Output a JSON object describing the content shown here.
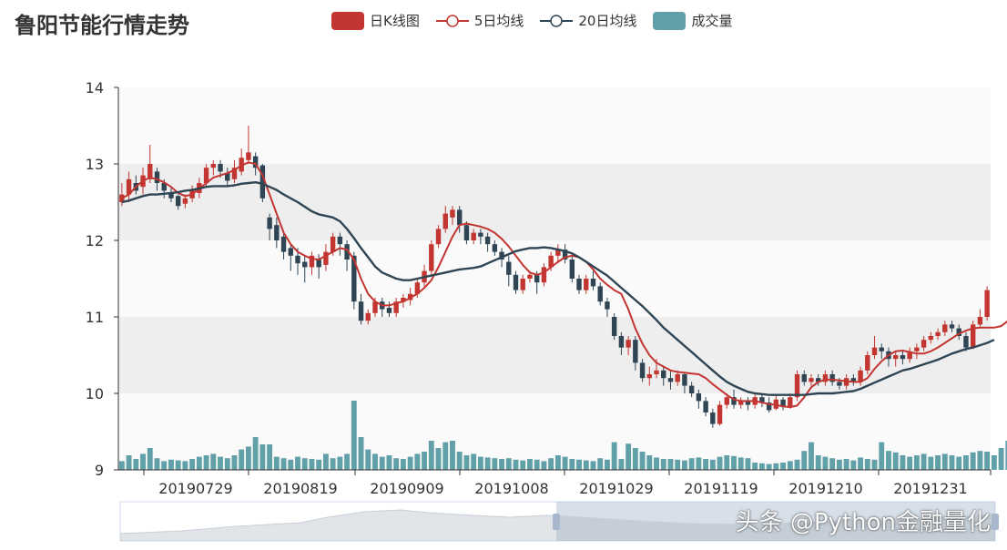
{
  "title": "鲁阳节能行情走势",
  "legend": [
    {
      "name": "日K线图",
      "kind": "candle",
      "color": "#c23531"
    },
    {
      "name": "5日均线",
      "kind": "line",
      "color": "#c23531"
    },
    {
      "name": "20日均线",
      "kind": "line",
      "color": "#2f4554"
    },
    {
      "name": "成交量",
      "kind": "bar",
      "color": "#61a0a8"
    }
  ],
  "watermark": "头条 @Python金融量化",
  "chart_data": {
    "type": "candlestick",
    "title": "鲁阳节能行情走势",
    "ylim": [
      9,
      14
    ],
    "yticks": [
      9,
      10,
      11,
      12,
      13,
      14
    ],
    "xticks": [
      "20190729",
      "20190819",
      "20190909",
      "20191008",
      "20191029",
      "20191119",
      "20191210",
      "20191231"
    ],
    "colors": {
      "up": "#c23531",
      "down": "#2f4554",
      "ma5": "#c23531",
      "ma20": "#2f4554",
      "volume": "#61a0a8"
    },
    "series": [
      {
        "name": "5日均线",
        "values": [
          12.55,
          12.6,
          12.7,
          12.78,
          12.82,
          12.8,
          12.76,
          12.7,
          12.62,
          12.58,
          12.6,
          12.68,
          12.75,
          12.82,
          12.85,
          12.88,
          12.92,
          12.98,
          13.02,
          13.0,
          12.85,
          12.6,
          12.35,
          12.1,
          11.95,
          11.85,
          11.8,
          11.76,
          11.75,
          11.8,
          11.85,
          11.9,
          11.88,
          11.75,
          11.5,
          11.3,
          11.2,
          11.15,
          11.15,
          11.18,
          11.2,
          11.25,
          11.3,
          11.38,
          11.48,
          11.65,
          11.85,
          12.05,
          12.2,
          12.22,
          12.2,
          12.18,
          12.15,
          12.1,
          12.02,
          11.92,
          11.8,
          11.68,
          11.58,
          11.55,
          11.58,
          11.65,
          11.72,
          11.78,
          11.8,
          11.78,
          11.72,
          11.62,
          11.5,
          11.42,
          11.35,
          11.3,
          11.1,
          10.85,
          10.65,
          10.5,
          10.4,
          10.35,
          10.3,
          10.28,
          10.27,
          10.26,
          10.25,
          10.2,
          10.12,
          10.05,
          9.98,
          9.92,
          9.9,
          9.9,
          9.9,
          9.88,
          9.86,
          9.85,
          9.83,
          9.82,
          9.84,
          9.95,
          10.08,
          10.15,
          10.18,
          10.18,
          10.17,
          10.16,
          10.15,
          10.15,
          10.2,
          10.32,
          10.42,
          10.5,
          10.55,
          10.56,
          10.54,
          10.52,
          10.52,
          10.55,
          10.6,
          10.66,
          10.72,
          10.78,
          10.82,
          10.85,
          10.86,
          10.86,
          10.86,
          10.88,
          10.95
        ]
      },
      {
        "name": "20日均线",
        "values": [
          12.5,
          12.52,
          12.55,
          12.58,
          12.6,
          12.6,
          12.61,
          12.62,
          12.63,
          12.65,
          12.66,
          12.68,
          12.7,
          12.71,
          12.71,
          12.71,
          12.72,
          12.74,
          12.75,
          12.76,
          12.74,
          12.7,
          12.66,
          12.6,
          12.55,
          12.5,
          12.44,
          12.38,
          12.34,
          12.32,
          12.3,
          12.25,
          12.15,
          12.03,
          11.9,
          11.78,
          11.66,
          11.58,
          11.54,
          11.5,
          11.48,
          11.48,
          11.5,
          11.52,
          11.54,
          11.56,
          11.58,
          11.6,
          11.62,
          11.63,
          11.64,
          11.66,
          11.7,
          11.74,
          11.78,
          11.82,
          11.86,
          11.88,
          11.9,
          11.9,
          11.91,
          11.9,
          11.88,
          11.86,
          11.83,
          11.78,
          11.72,
          11.66,
          11.6,
          11.54,
          11.46,
          11.38,
          11.3,
          11.22,
          11.14,
          11.05,
          10.96,
          10.86,
          10.78,
          10.7,
          10.62,
          10.54,
          10.46,
          10.38,
          10.3,
          10.22,
          10.15,
          10.1,
          10.06,
          10.02,
          10.0,
          9.99,
          9.98,
          9.98,
          9.98,
          9.98,
          9.98,
          9.98,
          9.99,
          10.0,
          10.0,
          10.0,
          10.01,
          10.02,
          10.03,
          10.06,
          10.1,
          10.14,
          10.18,
          10.22,
          10.26,
          10.3,
          10.32,
          10.35,
          10.38,
          10.41,
          10.44,
          10.48,
          10.52,
          10.55,
          10.58,
          10.6,
          10.63,
          10.66,
          10.7
        ]
      }
    ],
    "candles": [
      [
        12.5,
        12.6,
        12.75,
        12.45
      ],
      [
        12.6,
        12.8,
        12.9,
        12.5
      ],
      [
        12.75,
        12.65,
        12.85,
        12.6
      ],
      [
        12.7,
        12.85,
        12.95,
        12.6
      ],
      [
        12.8,
        13.0,
        13.25,
        12.75
      ],
      [
        12.9,
        12.75,
        12.95,
        12.65
      ],
      [
        12.75,
        12.65,
        12.8,
        12.55
      ],
      [
        12.62,
        12.55,
        12.7,
        12.5
      ],
      [
        12.58,
        12.45,
        12.6,
        12.4
      ],
      [
        12.48,
        12.55,
        12.6,
        12.42
      ],
      [
        12.55,
        12.65,
        12.72,
        12.5
      ],
      [
        12.62,
        12.75,
        12.82,
        12.55
      ],
      [
        12.75,
        12.95,
        13.0,
        12.7
      ],
      [
        12.95,
        13.0,
        13.05,
        12.85
      ],
      [
        13.0,
        12.9,
        13.05,
        12.82
      ],
      [
        12.88,
        12.78,
        12.95,
        12.7
      ],
      [
        12.8,
        12.95,
        13.05,
        12.75
      ],
      [
        12.9,
        13.08,
        13.2,
        12.85
      ],
      [
        13.05,
        13.15,
        13.5,
        13.0
      ],
      [
        13.1,
        12.95,
        13.15,
        12.85
      ],
      [
        12.98,
        12.55,
        13.0,
        12.5
      ],
      [
        12.3,
        12.15,
        12.35,
        12.0
      ],
      [
        12.2,
        12.0,
        12.3,
        11.9
      ],
      [
        12.05,
        11.85,
        12.1,
        11.75
      ],
      [
        11.9,
        11.8,
        11.95,
        11.6
      ],
      [
        11.8,
        11.7,
        11.9,
        11.55
      ],
      [
        11.72,
        11.65,
        11.8,
        11.45
      ],
      [
        11.65,
        11.8,
        11.85,
        11.55
      ],
      [
        11.75,
        11.65,
        11.82,
        11.5
      ],
      [
        11.68,
        11.85,
        11.95,
        11.6
      ],
      [
        11.85,
        12.05,
        12.1,
        11.8
      ],
      [
        12.05,
        11.95,
        12.1,
        11.8
      ],
      [
        11.95,
        11.75,
        12.0,
        11.6
      ],
      [
        11.8,
        11.2,
        11.85,
        11.1
      ],
      [
        11.2,
        10.95,
        11.3,
        10.9
      ],
      [
        10.95,
        11.05,
        11.1,
        10.9
      ],
      [
        11.05,
        11.2,
        11.25,
        11.0
      ],
      [
        11.2,
        11.1,
        11.25,
        11.0
      ],
      [
        11.12,
        11.05,
        11.2,
        11.0
      ],
      [
        11.05,
        11.2,
        11.25,
        11.0
      ],
      [
        11.2,
        11.25,
        11.3,
        11.12
      ],
      [
        11.22,
        11.3,
        11.38,
        11.15
      ],
      [
        11.3,
        11.45,
        11.5,
        11.25
      ],
      [
        11.45,
        11.6,
        11.68,
        11.4
      ],
      [
        11.6,
        11.95,
        12.0,
        11.55
      ],
      [
        11.95,
        12.15,
        12.2,
        11.9
      ],
      [
        12.15,
        12.35,
        12.45,
        12.1
      ],
      [
        12.3,
        12.4,
        12.45,
        12.2
      ],
      [
        12.4,
        12.2,
        12.45,
        12.1
      ],
      [
        12.2,
        12.0,
        12.25,
        11.95
      ],
      [
        12.0,
        12.1,
        12.15,
        11.95
      ],
      [
        12.1,
        12.05,
        12.15,
        11.95
      ],
      [
        12.05,
        11.95,
        12.1,
        11.85
      ],
      [
        11.95,
        11.85,
        12.0,
        11.8
      ],
      [
        11.85,
        11.75,
        11.9,
        11.65
      ],
      [
        11.72,
        11.55,
        11.8,
        11.4
      ],
      [
        11.55,
        11.35,
        11.6,
        11.3
      ],
      [
        11.35,
        11.5,
        11.55,
        11.3
      ],
      [
        11.5,
        11.55,
        11.6,
        11.45
      ],
      [
        11.55,
        11.45,
        11.6,
        11.3
      ],
      [
        11.45,
        11.65,
        11.7,
        11.4
      ],
      [
        11.65,
        11.8,
        11.85,
        11.6
      ],
      [
        11.8,
        11.88,
        11.95,
        11.7
      ],
      [
        11.88,
        11.75,
        11.95,
        11.7
      ],
      [
        11.75,
        11.5,
        11.8,
        11.45
      ],
      [
        11.5,
        11.35,
        11.55,
        11.3
      ],
      [
        11.35,
        11.5,
        11.55,
        11.3
      ],
      [
        11.5,
        11.4,
        11.6,
        11.35
      ],
      [
        11.4,
        11.2,
        11.45,
        11.15
      ],
      [
        11.2,
        11.1,
        11.25,
        11.0
      ],
      [
        11.0,
        10.75,
        11.05,
        10.7
      ],
      [
        10.75,
        10.6,
        10.8,
        10.5
      ],
      [
        10.6,
        10.7,
        10.75,
        10.5
      ],
      [
        10.7,
        10.4,
        10.75,
        10.3
      ],
      [
        10.4,
        10.2,
        10.45,
        10.15
      ],
      [
        10.2,
        10.25,
        10.35,
        10.1
      ],
      [
        10.25,
        10.3,
        10.45,
        10.2
      ],
      [
        10.3,
        10.2,
        10.35,
        10.1
      ],
      [
        10.2,
        10.15,
        10.3,
        10.05
      ],
      [
        10.15,
        10.25,
        10.3,
        10.1
      ],
      [
        10.25,
        10.1,
        10.28,
        10.0
      ],
      [
        10.1,
        10.0,
        10.15,
        9.95
      ],
      [
        10.0,
        9.9,
        10.05,
        9.8
      ],
      [
        9.9,
        9.75,
        9.95,
        9.7
      ],
      [
        9.75,
        9.6,
        9.8,
        9.55
      ],
      [
        9.6,
        9.85,
        9.9,
        9.58
      ],
      [
        9.85,
        9.95,
        10.0,
        9.8
      ],
      [
        9.95,
        9.85,
        10.05,
        9.8
      ],
      [
        9.85,
        9.9,
        9.95,
        9.8
      ],
      [
        9.9,
        9.85,
        9.95,
        9.78
      ],
      [
        9.85,
        9.95,
        10.0,
        9.8
      ],
      [
        9.95,
        9.88,
        10.0,
        9.82
      ],
      [
        9.88,
        9.78,
        9.95,
        9.75
      ],
      [
        9.8,
        9.92,
        9.98,
        9.78
      ],
      [
        9.92,
        9.82,
        9.95,
        9.78
      ],
      [
        9.82,
        9.95,
        10.0,
        9.8
      ],
      [
        9.95,
        10.25,
        10.3,
        9.9
      ],
      [
        10.25,
        10.15,
        10.3,
        10.1
      ],
      [
        10.15,
        10.2,
        10.25,
        10.1
      ],
      [
        10.2,
        10.15,
        10.25,
        10.1
      ],
      [
        10.15,
        10.25,
        10.3,
        10.1
      ],
      [
        10.25,
        10.15,
        10.3,
        10.1
      ],
      [
        10.15,
        10.1,
        10.2,
        10.05
      ],
      [
        10.1,
        10.2,
        10.25,
        10.05
      ],
      [
        10.2,
        10.15,
        10.25,
        10.1
      ],
      [
        10.15,
        10.3,
        10.35,
        10.1
      ],
      [
        10.3,
        10.5,
        10.55,
        10.25
      ],
      [
        10.5,
        10.6,
        10.75,
        10.45
      ],
      [
        10.6,
        10.55,
        10.65,
        10.45
      ],
      [
        10.55,
        10.45,
        10.6,
        10.35
      ],
      [
        10.45,
        10.5,
        10.55,
        10.35
      ],
      [
        10.5,
        10.45,
        10.55,
        10.38
      ],
      [
        10.45,
        10.55,
        10.6,
        10.4
      ],
      [
        10.55,
        10.6,
        10.65,
        10.45
      ],
      [
        10.6,
        10.7,
        10.75,
        10.55
      ],
      [
        10.7,
        10.75,
        10.8,
        10.65
      ],
      [
        10.75,
        10.8,
        10.85,
        10.7
      ],
      [
        10.8,
        10.9,
        10.95,
        10.75
      ],
      [
        10.9,
        10.85,
        10.95,
        10.8
      ],
      [
        10.85,
        10.75,
        10.9,
        10.7
      ],
      [
        10.75,
        10.6,
        10.8,
        10.55
      ],
      [
        10.6,
        10.9,
        10.95,
        10.58
      ],
      [
        10.9,
        11.0,
        11.1,
        10.85
      ],
      [
        11.0,
        11.35,
        11.4,
        10.95
      ]
    ],
    "volume_ratio": [
      0.12,
      0.2,
      0.15,
      0.22,
      0.3,
      0.16,
      0.12,
      0.14,
      0.13,
      0.12,
      0.15,
      0.18,
      0.2,
      0.22,
      0.18,
      0.16,
      0.2,
      0.28,
      0.32,
      0.45,
      0.35,
      0.35,
      0.18,
      0.16,
      0.14,
      0.18,
      0.16,
      0.15,
      0.14,
      0.22,
      0.16,
      0.18,
      0.22,
      0.95,
      0.45,
      0.28,
      0.22,
      0.18,
      0.2,
      0.16,
      0.15,
      0.18,
      0.22,
      0.25,
      0.4,
      0.3,
      0.38,
      0.4,
      0.25,
      0.2,
      0.22,
      0.18,
      0.17,
      0.16,
      0.15,
      0.16,
      0.14,
      0.13,
      0.15,
      0.14,
      0.12,
      0.16,
      0.2,
      0.18,
      0.15,
      0.14,
      0.13,
      0.12,
      0.16,
      0.14,
      0.38,
      0.15,
      0.36,
      0.3,
      0.25,
      0.2,
      0.17,
      0.15,
      0.15,
      0.14,
      0.13,
      0.16,
      0.17,
      0.15,
      0.14,
      0.18,
      0.2,
      0.19,
      0.17,
      0.16,
      0.1,
      0.09,
      0.08,
      0.09,
      0.1,
      0.12,
      0.14,
      0.26,
      0.38,
      0.2,
      0.18,
      0.16,
      0.14,
      0.15,
      0.13,
      0.17,
      0.15,
      0.14,
      0.38,
      0.26,
      0.24,
      0.2,
      0.18,
      0.2,
      0.22,
      0.18,
      0.2,
      0.22,
      0.2,
      0.18,
      0.2,
      0.24,
      0.26,
      0.25,
      0.2,
      0.3,
      0.4
    ]
  }
}
